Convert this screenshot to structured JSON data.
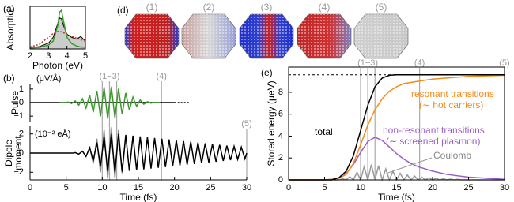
{
  "chart_data": [
    {
      "type": "line",
      "panel_label": "(a)",
      "ylabel": "Absorption",
      "xlabel": "Photon (eV)",
      "xlim": [
        2,
        5
      ],
      "xticks": [
        2,
        3,
        4,
        5
      ],
      "ylim": [
        0,
        1.1
      ],
      "yticks": [],
      "series": [
        {
          "color": "#aaaaaa",
          "fill": true,
          "x": [
            2,
            2.5,
            3,
            3.25,
            3.5,
            3.6,
            3.7,
            3.8,
            4,
            4.25,
            4.5,
            4.75,
            5
          ],
          "values": [
            0.03,
            0.06,
            0.15,
            0.3,
            0.65,
            0.8,
            0.78,
            0.62,
            0.38,
            0.3,
            0.25,
            0.32,
            0.2
          ]
        },
        {
          "color": "#c0392b",
          "dash": true,
          "x": [
            2,
            2.5,
            3,
            3.25,
            3.5,
            3.6,
            3.7,
            3.8,
            4,
            4.25,
            4.5,
            4.75,
            5
          ],
          "values": [
            0.05,
            0.12,
            0.3,
            0.4,
            0.45,
            0.45,
            0.44,
            0.42,
            0.38,
            0.33,
            0.28,
            0.24,
            0.2
          ]
        },
        {
          "color": "#3a9a2a",
          "x": [
            2,
            2.5,
            3,
            3.25,
            3.5,
            3.6,
            3.7,
            3.8,
            4,
            4.25,
            4.5,
            4.75,
            5
          ],
          "values": [
            0.02,
            0.04,
            0.1,
            0.2,
            0.6,
            0.95,
            1.0,
            0.75,
            0.3,
            0.14,
            0.08,
            0.05,
            0.04
          ]
        }
      ]
    },
    {
      "type": "line",
      "panel_label": "(b)",
      "ylabel": "Pulse",
      "unit": "(μV/Å)",
      "xlim": [
        0,
        30
      ],
      "xticks": [],
      "ylim": [
        -1.4,
        1.4
      ],
      "yticks": [
        {
          "value": -1,
          "label": "−1"
        },
        0,
        1
      ],
      "markers": [
        {
          "label": "(1−3)",
          "x": [
            10,
            11,
            12
          ]
        },
        {
          "label": "(4)",
          "x": [
            18.2
          ]
        }
      ],
      "series": [
        {
          "color": "#000000",
          "x": [
            0,
            20
          ],
          "values": [
            0,
            0
          ]
        },
        {
          "color": "#000000",
          "dash": true,
          "x": [
            20,
            22
          ],
          "values": [
            0,
            0
          ]
        },
        {
          "color": "#3a9a2a",
          "x": [
            4,
            4.25,
            4.75,
            5.25,
            5.75,
            6.25,
            6.75,
            7.25,
            7.75,
            8.25,
            8.75,
            9.25,
            9.75,
            10.25,
            10.75,
            11.25,
            11.75,
            12.25,
            12.75,
            13.25,
            13.75,
            14.25,
            14.75,
            15.25,
            15.75,
            16.25,
            16.75,
            17.25,
            17.75,
            18
          ],
          "values": [
            0,
            0.01,
            -0.02,
            0.04,
            -0.07,
            0.12,
            -0.19,
            0.28,
            -0.4,
            0.55,
            -0.71,
            0.87,
            -1.02,
            1.13,
            -1.19,
            1.19,
            -1.13,
            1.02,
            -0.87,
            0.71,
            -0.55,
            0.4,
            -0.28,
            0.19,
            -0.12,
            0.07,
            -0.04,
            0.02,
            -0.01,
            0
          ]
        }
      ]
    },
    {
      "type": "line",
      "ylabel": [
        "Dipole",
        "moment"
      ],
      "unit": "(10⁻² eÅ)",
      "xlabel": "Time (fs)",
      "xlim": [
        0,
        30
      ],
      "xticks": [
        0,
        5,
        10,
        15,
        20,
        25,
        30
      ],
      "ylim": [
        -2.8,
        2.8
      ],
      "yticks": [
        {
          "value": -2,
          "label": "−2"
        },
        0,
        2
      ],
      "markers": [
        {
          "label": "(5)",
          "x": [
            30
          ]
        }
      ],
      "series": [
        {
          "color": "#888888",
          "x": [
            8.25,
            8.75,
            9.25,
            9.75,
            10.25,
            10.75,
            11.25,
            11.75,
            12.25,
            12.75,
            13.25
          ],
          "values": [
            0.7,
            -1.1,
            1.5,
            -2.0,
            2.4,
            -2.6,
            2.7,
            -2.6,
            2.4,
            -2.1,
            1.8
          ]
        },
        {
          "color": "#000000",
          "x": [
            0,
            6,
            6.25,
            6.75,
            7.25,
            7.75,
            8.25,
            8.75,
            9.25,
            9.75,
            10.25,
            10.75,
            11.25,
            11.75,
            12.25,
            12.75,
            13.25,
            13.75,
            14.25,
            14.75,
            15.25,
            15.75,
            16.25,
            16.75,
            17.25,
            17.75,
            18.25,
            18.75,
            19.25,
            19.75,
            20.25,
            20.75,
            21.25,
            21.75,
            22.25,
            22.75,
            23.25,
            23.75,
            24.25,
            24.75,
            25.25,
            25.75,
            26.25,
            26.75,
            27.25,
            27.75,
            28.25,
            28.75,
            29.25,
            29.75,
            30
          ],
          "values": [
            0,
            0,
            0.05,
            -0.1,
            0.2,
            -0.35,
            0.55,
            -0.8,
            1.1,
            -1.4,
            1.7,
            -1.9,
            2.0,
            -2.0,
            2.0,
            -1.95,
            1.9,
            -1.86,
            1.82,
            -1.78,
            1.74,
            -1.7,
            1.66,
            -1.62,
            1.58,
            -1.54,
            1.5,
            -1.46,
            1.42,
            -1.38,
            1.34,
            -1.3,
            1.26,
            -1.22,
            1.18,
            -1.14,
            1.1,
            -1.06,
            1.02,
            -0.98,
            0.94,
            -0.9,
            0.86,
            -0.82,
            0.78,
            -0.74,
            0.7,
            -0.66,
            0.62,
            -0.6,
            0
          ]
        }
      ]
    },
    {
      "type": "line",
      "panel_label": "(e)",
      "ylabel": "Stored energy (μeV)",
      "xlabel": "Time (fs)",
      "xlim": [
        0,
        30
      ],
      "xticks": [
        0,
        5,
        10,
        15,
        20,
        25,
        30
      ],
      "ylim": [
        0,
        10.3
      ],
      "yticks": [
        0,
        2,
        4,
        6,
        8
      ],
      "dashed_level": 9.6,
      "markers": [
        {
          "label": "(1−3)",
          "x": [
            10,
            11,
            12
          ]
        },
        {
          "label": "(4)",
          "x": [
            18.2
          ]
        },
        {
          "label": "(5)",
          "x": [
            30
          ]
        }
      ],
      "annotations": [
        {
          "text": "total",
          "color": "#000000"
        },
        {
          "text": "resonant transitions",
          "color": "#f28c1c"
        },
        {
          "text": "(∼ hot carriers)",
          "color": "#f28c1c"
        },
        {
          "text": "non-resonant transitions",
          "color": "#9a5fc8"
        },
        {
          "text": "(∼ screened plasmon)",
          "color": "#9a5fc8"
        },
        {
          "text": "Coulomb",
          "color": "#888888"
        }
      ],
      "series": [
        {
          "color": "#999999",
          "x": [
            0,
            7,
            7.5,
            8,
            8.5,
            9,
            9.5,
            10,
            10.5,
            11,
            11.5,
            12,
            12.5,
            13,
            13.5,
            14,
            14.5,
            15,
            15.5,
            16,
            16.5,
            17,
            17.5,
            18,
            18.5,
            19,
            19.5,
            20,
            20.5,
            21,
            21.5,
            22,
            22.5,
            23,
            23.5,
            24,
            30
          ],
          "values": [
            0,
            0,
            0.1,
            0,
            0.3,
            0,
            0.7,
            0,
            1.2,
            0,
            1.4,
            0,
            1.3,
            0,
            1.0,
            0,
            0.8,
            0,
            0.6,
            0,
            0.45,
            0,
            0.35,
            0,
            0.25,
            0,
            0.2,
            0,
            0.15,
            0,
            0.1,
            0,
            0.07,
            0,
            0.05,
            0,
            0
          ]
        },
        {
          "color": "#9a5fc8",
          "x": [
            0,
            5,
            6,
            7,
            8,
            9,
            10,
            11,
            12,
            13,
            14,
            15,
            16,
            17,
            18,
            20,
            22,
            25,
            30
          ],
          "values": [
            0,
            0,
            0.05,
            0.2,
            0.6,
            1.4,
            2.5,
            3.5,
            3.9,
            3.6,
            3.0,
            2.4,
            1.9,
            1.5,
            1.2,
            0.8,
            0.5,
            0.25,
            0.05
          ]
        },
        {
          "color": "#f28c1c",
          "x": [
            0,
            5,
            6,
            7,
            8,
            9,
            10,
            11,
            12,
            13,
            14,
            15,
            16,
            18,
            20,
            25,
            30
          ],
          "values": [
            0,
            0,
            0.05,
            0.15,
            0.5,
            1.5,
            3.2,
            5.0,
            6.4,
            7.4,
            8.1,
            8.5,
            8.8,
            9.0,
            9.2,
            9.45,
            9.55
          ]
        },
        {
          "color": "#000000",
          "x": [
            0,
            6,
            7,
            8,
            9,
            10,
            11,
            12,
            13,
            14,
            15,
            30
          ],
          "values": [
            0,
            0,
            0.2,
            0.8,
            2.2,
            4.5,
            6.8,
            8.5,
            9.3,
            9.55,
            9.6,
            9.6
          ]
        }
      ]
    }
  ],
  "nanoparticles": {
    "panel_label": "(d)",
    "labels": [
      "(1)",
      "(2)",
      "(3)",
      "(4)",
      "(5)"
    ]
  }
}
